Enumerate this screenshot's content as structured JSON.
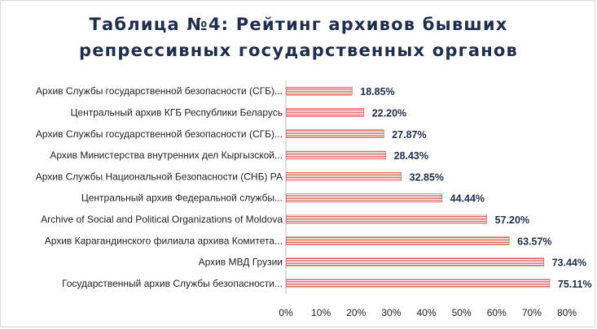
{
  "chart_data": {
    "type": "bar",
    "orientation": "horizontal",
    "title_lines": [
      "Таблица №4: Рейтинг архивов бывших",
      "репрессивных государственных органов"
    ],
    "categories": [
      "Архив Службы государственной безопасности (СГБ)...",
      "Центральный архив КГБ Республики Беларусь",
      "Архив Службы государственной безопасности (СГБ)...",
      "Архив Министерства внутренних дел Кыргызской...",
      "Архив Службы Национальной Безопасности (СНБ) РА",
      "Центральный архив Федеральной службы...",
      "Archive of Social and Political Organizations of Moldova",
      "Архив Карагандинского филиала архива Комитета...",
      "Архив МВД Грузии",
      "Государственный архив Службы безопасности..."
    ],
    "values": [
      18.85,
      22.2,
      27.87,
      28.43,
      32.85,
      44.44,
      57.2,
      63.57,
      73.44,
      75.11
    ],
    "data_labels": [
      "18.85%",
      "22.20%",
      "27.87%",
      "28.43%",
      "32.85%",
      "44.44%",
      "57.20%",
      "63.57%",
      "73.44%",
      "75.11%"
    ],
    "xlim": [
      0,
      80
    ],
    "x_ticks": [
      "0%",
      "10%",
      "20%",
      "30%",
      "40%",
      "50%",
      "60%",
      "70%",
      "80%"
    ],
    "grid": false,
    "bar_color": "#e57373",
    "bar_pattern": "horizontal-stripes"
  }
}
